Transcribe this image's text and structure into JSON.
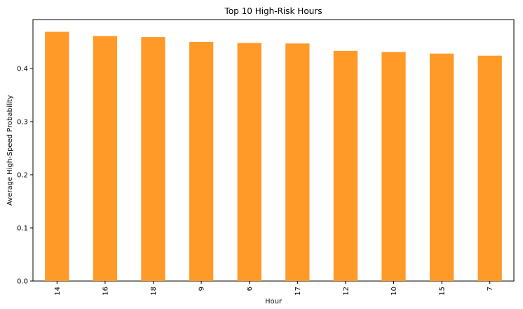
{
  "chart_data": {
    "type": "bar",
    "title": "Top 10 High-Risk Hours",
    "xlabel": "Hour",
    "ylabel": "Average High-Speed Probability",
    "categories": [
      "14",
      "16",
      "18",
      "9",
      "6",
      "17",
      "12",
      "10",
      "15",
      "7"
    ],
    "values": [
      0.469,
      0.461,
      0.459,
      0.45,
      0.448,
      0.447,
      0.433,
      0.431,
      0.428,
      0.424
    ],
    "ylim": [
      0,
      0.492
    ],
    "yticks": [
      "0.0",
      "0.1",
      "0.2",
      "0.3",
      "0.4"
    ],
    "bar_color": "#ff9a28",
    "grid": false,
    "legend": "none"
  }
}
